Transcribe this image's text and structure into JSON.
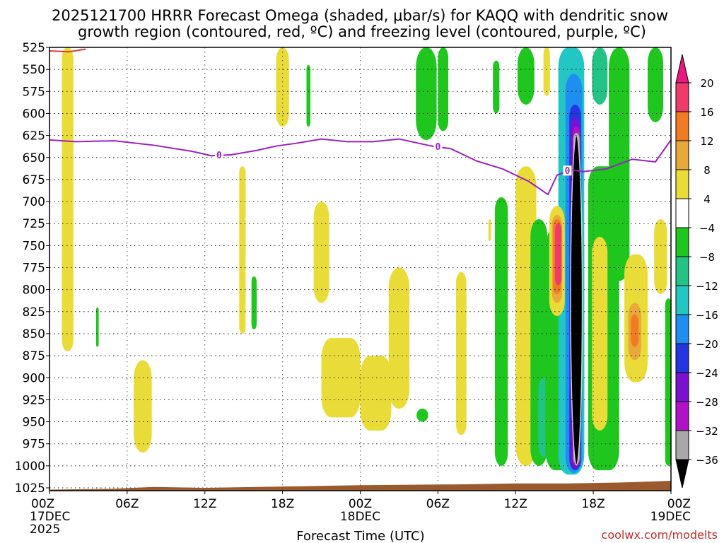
{
  "chart_data": {
    "type": "heatmap",
    "title_lines": [
      "2025121700 HRRR Forecast Omega (shaded, μbar/s) for KAQQ with dendritic snow",
      "growth region (contoured, red, ºC) and freezing level (contoured, purple, ºC)"
    ],
    "xlabel": "Forecast Time (UTC)",
    "credit": "coolwx.com/modelts",
    "x_range_hours": [
      0,
      48
    ],
    "y_range_hPa": [
      525,
      1035
    ],
    "y_ticks": [
      525,
      550,
      575,
      600,
      625,
      650,
      675,
      700,
      725,
      750,
      775,
      800,
      825,
      850,
      875,
      900,
      925,
      950,
      975,
      1000,
      1025
    ],
    "x_ticks": [
      {
        "h": 0,
        "line1": "00Z",
        "line2": "17DEC",
        "line3": "2025"
      },
      {
        "h": 6,
        "line1": "06Z"
      },
      {
        "h": 12,
        "line1": "12Z"
      },
      {
        "h": 18,
        "line1": "18Z"
      },
      {
        "h": 24,
        "line1": "00Z",
        "line2": "18DEC"
      },
      {
        "h": 30,
        "line1": "06Z"
      },
      {
        "h": 36,
        "line1": "12Z"
      },
      {
        "h": 42,
        "line1": "18Z"
      },
      {
        "h": 48,
        "line1": "00Z",
        "line2": "19DEC"
      }
    ],
    "colorbar": {
      "labels": [
        "20",
        "16",
        "12",
        "8",
        "4",
        "−4",
        "−8",
        "−12",
        "−16",
        "−20",
        "−24",
        "−28",
        "−32",
        "−36"
      ],
      "bins": [
        {
          "lo": 16,
          "hi": 20,
          "color": "#f03a6a"
        },
        {
          "lo": 12,
          "hi": 16,
          "color": "#f07b22"
        },
        {
          "lo": 8,
          "hi": 12,
          "color": "#e8a93a"
        },
        {
          "lo": 4,
          "hi": 8,
          "color": "#eadc38"
        },
        {
          "lo": -4,
          "hi": 4,
          "color": "#ffffff"
        },
        {
          "lo": -8,
          "hi": -4,
          "color": "#1ec61e"
        },
        {
          "lo": -12,
          "hi": -8,
          "color": "#22c384"
        },
        {
          "lo": -16,
          "hi": -12,
          "color": "#22c7c4"
        },
        {
          "lo": -20,
          "hi": -16,
          "color": "#1e8ef0"
        },
        {
          "lo": -24,
          "hi": -20,
          "color": "#2436e0"
        },
        {
          "lo": -28,
          "hi": -24,
          "color": "#7a10d0"
        },
        {
          "lo": -32,
          "hi": -28,
          "color": "#b012c6"
        },
        {
          "lo": -36,
          "hi": -32,
          "color": "#a8a8a8"
        }
      ],
      "over_color": "#e8187e",
      "under_color": "#000000"
    },
    "omega_cells": [
      {
        "h": 1.4,
        "p1": 525,
        "p2": 870,
        "w": 0.9,
        "v": 5
      },
      {
        "h": 3.7,
        "p1": 820,
        "p2": 865,
        "w": 0.2,
        "v": -6
      },
      {
        "h": 7.2,
        "p1": 880,
        "p2": 985,
        "w": 1.4,
        "v": 5
      },
      {
        "h": 14.9,
        "p1": 660,
        "p2": 850,
        "w": 0.5,
        "v": 5
      },
      {
        "h": 15.8,
        "p1": 785,
        "p2": 845,
        "w": 0.4,
        "v": -6
      },
      {
        "h": 18.0,
        "p1": 525,
        "p2": 615,
        "w": 1.0,
        "v": 5
      },
      {
        "h": 20.0,
        "p1": 545,
        "p2": 615,
        "w": 0.3,
        "v": -6
      },
      {
        "h": 21.0,
        "p1": 700,
        "p2": 815,
        "w": 1.2,
        "v": 5
      },
      {
        "h": 22.5,
        "p1": 855,
        "p2": 945,
        "w": 3.0,
        "v": 5
      },
      {
        "h": 25.2,
        "p1": 875,
        "p2": 960,
        "w": 2.4,
        "v": 5
      },
      {
        "h": 27.0,
        "p1": 775,
        "p2": 935,
        "w": 1.6,
        "v": 5
      },
      {
        "h": 28.8,
        "p1": 935,
        "p2": 950,
        "w": 0.9,
        "v": -6
      },
      {
        "h": 29.1,
        "p1": 525,
        "p2": 630,
        "w": 1.6,
        "v": -6
      },
      {
        "h": 30.4,
        "p1": 525,
        "p2": 620,
        "w": 0.8,
        "v": -6
      },
      {
        "h": 31.8,
        "p1": 780,
        "p2": 965,
        "w": 0.8,
        "v": 5
      },
      {
        "h": 34.5,
        "p1": 540,
        "p2": 600,
        "w": 0.5,
        "v": -6
      },
      {
        "h": 34.0,
        "p1": 720,
        "p2": 745,
        "w": 0.2,
        "v": 5
      },
      {
        "h": 34.9,
        "p1": 695,
        "p2": 1000,
        "w": 1.0,
        "v": -6
      },
      {
        "h": 36.8,
        "p1": 525,
        "p2": 590,
        "w": 1.3,
        "v": -6
      },
      {
        "h": 36.8,
        "p1": 660,
        "p2": 1000,
        "w": 1.6,
        "v": 5
      },
      {
        "h": 37.8,
        "p1": 720,
        "p2": 1000,
        "w": 1.3,
        "v": -6
      },
      {
        "h": 38.2,
        "p1": 900,
        "p2": 990,
        "w": 0.9,
        "v": -10
      },
      {
        "h": 39.8,
        "p1": 730,
        "p2": 1005,
        "w": 3.0,
        "v": -6
      },
      {
        "h": 40.3,
        "p1": 525,
        "p2": 1010,
        "w": 2.0,
        "v": -14
      },
      {
        "h": 40.5,
        "p1": 555,
        "p2": 1008,
        "w": 1.3,
        "v": -18
      },
      {
        "h": 40.6,
        "p1": 590,
        "p2": 1005,
        "w": 0.9,
        "v": -22
      },
      {
        "h": 40.6,
        "p1": 605,
        "p2": 1003,
        "w": 0.7,
        "v": -26
      },
      {
        "h": 40.7,
        "p1": 615,
        "p2": 1000,
        "w": 0.6,
        "v": -30
      },
      {
        "h": 40.7,
        "p1": 622,
        "p2": 998,
        "w": 0.5,
        "v": -34
      },
      {
        "h": 39.2,
        "p1": 705,
        "p2": 830,
        "w": 1.2,
        "v": 6
      },
      {
        "h": 39.2,
        "p1": 715,
        "p2": 815,
        "w": 0.8,
        "v": 10
      },
      {
        "h": 39.2,
        "p1": 720,
        "p2": 805,
        "w": 0.6,
        "v": 14
      },
      {
        "h": 39.3,
        "p1": 725,
        "p2": 795,
        "w": 0.5,
        "v": 18
      },
      {
        "h": 38.4,
        "p1": 525,
        "p2": 580,
        "w": 0.5,
        "v": 5
      },
      {
        "h": 42.5,
        "p1": 525,
        "p2": 590,
        "w": 1.2,
        "v": -10
      },
      {
        "h": 44.0,
        "p1": 525,
        "p2": 790,
        "w": 1.6,
        "v": -6
      },
      {
        "h": 42.8,
        "p1": 660,
        "p2": 1005,
        "w": 2.4,
        "v": -6
      },
      {
        "h": 42.5,
        "p1": 740,
        "p2": 960,
        "w": 1.2,
        "v": 5
      },
      {
        "h": 45.3,
        "p1": 760,
        "p2": 905,
        "w": 1.8,
        "v": 5
      },
      {
        "h": 45.2,
        "p1": 815,
        "p2": 880,
        "w": 1.0,
        "v": 9
      },
      {
        "h": 45.2,
        "p1": 828,
        "p2": 865,
        "w": 0.6,
        "v": 13
      },
      {
        "h": 46.8,
        "p1": 525,
        "p2": 610,
        "w": 1.2,
        "v": -6
      },
      {
        "h": 47.2,
        "p1": 720,
        "p2": 805,
        "w": 1.0,
        "v": 5
      },
      {
        "h": 47.8,
        "p1": 810,
        "p2": 1000,
        "w": 0.5,
        "v": -6
      }
    ],
    "freezing_level": {
      "label": "0",
      "label_positions_h": [
        13.1,
        30.0,
        40.0
      ],
      "points": [
        [
          0,
          630
        ],
        [
          2,
          632
        ],
        [
          5,
          631
        ],
        [
          8,
          636
        ],
        [
          11,
          643
        ],
        [
          12.5,
          648
        ],
        [
          14,
          647
        ],
        [
          16,
          642
        ],
        [
          17.5,
          637
        ],
        [
          19,
          634
        ],
        [
          21,
          629
        ],
        [
          23,
          632
        ],
        [
          25,
          632
        ],
        [
          27,
          629
        ],
        [
          29.5,
          637
        ],
        [
          31,
          640
        ],
        [
          33,
          654
        ],
        [
          35,
          663
        ],
        [
          37,
          677
        ],
        [
          38.5,
          692
        ],
        [
          39.2,
          670
        ],
        [
          40.3,
          664
        ],
        [
          41.2,
          666
        ],
        [
          43,
          663
        ],
        [
          45,
          652
        ],
        [
          46.8,
          655
        ],
        [
          48,
          630
        ]
      ]
    },
    "dgz_contour": {
      "points": [
        [
          0,
          529
        ],
        [
          1.5,
          530
        ],
        [
          2.8,
          527
        ]
      ]
    },
    "terrain_hPa": [
      [
        0,
        1027
      ],
      [
        5,
        1026
      ],
      [
        8,
        1024
      ],
      [
        12,
        1025
      ],
      [
        16,
        1024
      ],
      [
        24,
        1022
      ],
      [
        32,
        1021
      ],
      [
        36,
        1020
      ],
      [
        40,
        1020
      ],
      [
        44,
        1019
      ],
      [
        48,
        1017
      ]
    ]
  }
}
